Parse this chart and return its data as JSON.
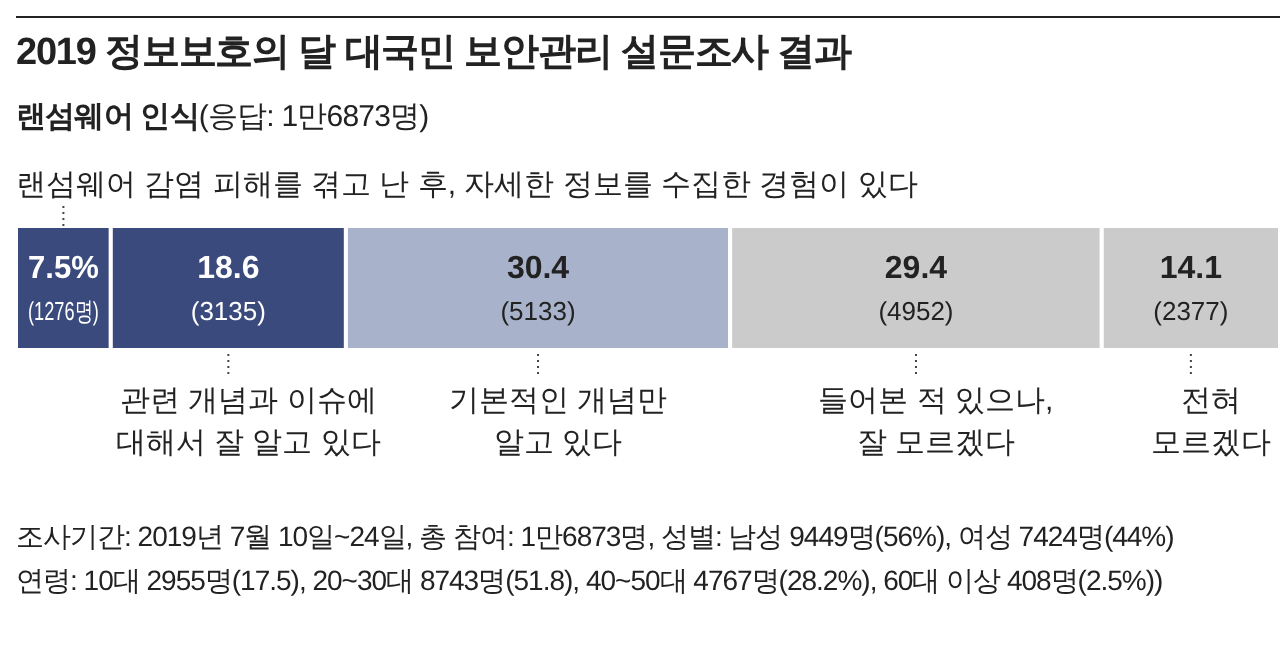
{
  "chart_data": {
    "type": "bar",
    "orientation": "horizontal",
    "stacked": true,
    "title": "2019 정보보호의 달 대국민 보안관리 설문조사 결과",
    "subtitle": "랜섬웨어 인식(응답: 1만6873명)",
    "categories": [
      null
    ],
    "series": [
      {
        "name": "랜섬웨어 감염 피해를 겪고 난 후, 자세한 정보를 수집한 경험이 있다",
        "color": "#3a4a7d",
        "values": [
          7.5
        ],
        "value_labels": [
          "7.5%\n(1276명)"
        ]
      },
      {
        "name": "관련 개념과 이슈에\n대해서 잘 알고 있다",
        "color": "#3a4a7d",
        "values": [
          18.6
        ],
        "value_labels": [
          "18.6\n(3135)"
        ]
      },
      {
        "name": "기본적인 개념만\n알고 있다",
        "color": "#a8b3cb",
        "values": [
          30.4
        ],
        "value_labels": [
          "30.4\n(5133)"
        ]
      },
      {
        "name": "들어본 적 있으나,\n잘 모르겠다",
        "color": "#cbcbcb",
        "values": [
          29.4
        ],
        "value_labels": [
          "29.4\n(4952)"
        ]
      },
      {
        "name": "전혀\n모르겠다",
        "color": "#cbcbcb",
        "values": [
          14.1
        ],
        "value_labels": [
          "14.1\n(2377)"
        ]
      }
    ],
    "annotations": [
      "조사기간: 2019년 7월 10일~24일, 총 참여: 1만6873명, 성별: 남성 9449명(56%), 여성 7424명(44%)",
      "연령: 10대 2955명(17.5), 20~30대 8743명(51.8), 40~50대 4767명(28.2%), 60대 이상 408명(2.5%))"
    ]
  }
}
